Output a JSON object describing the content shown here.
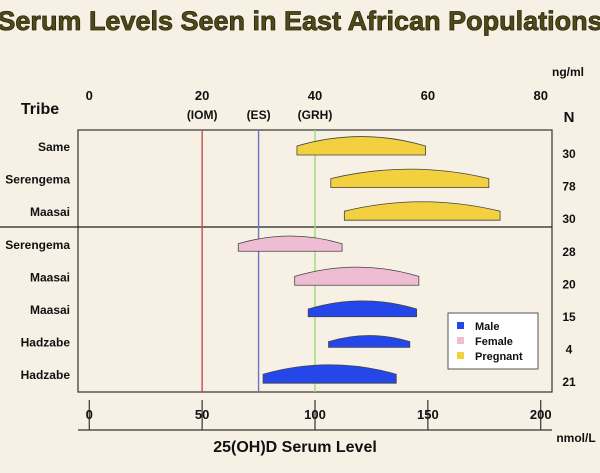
{
  "title": "Serum Levels Seen in East African Populations",
  "chart_data": {
    "type": "range-bar",
    "title": "Serum Levels Seen in East African Populations",
    "xlabel": "25(OH)D Serum Level",
    "x_unit_bottom": "nmol/L",
    "x_unit_top": "ng/ml",
    "xlim_nmol": [
      -5,
      205
    ],
    "xticks_nmol": [
      0,
      50,
      100,
      150,
      200
    ],
    "xticks_ngml": [
      0,
      20,
      40,
      60,
      80
    ],
    "row_axis_label": "Tribe",
    "n_label": "N",
    "reference_lines": [
      {
        "name": "(IOM)",
        "ngml": 20,
        "nmol": 50,
        "color": "#c0504d"
      },
      {
        "name": "(ES)",
        "ngml": 30,
        "nmol": 75,
        "color": "#6b74c9"
      },
      {
        "name": "(GRH)",
        "ngml": 40,
        "nmol": 100,
        "color": "#9edb72"
      }
    ],
    "group_colors": {
      "Male": "#2546e8",
      "Female": "#efbdd3",
      "Pregnant": "#f2d040"
    },
    "rows": [
      {
        "tribe": "Same",
        "group": "Pregnant",
        "min": 92,
        "max": 149,
        "n": "30"
      },
      {
        "tribe": "Serengema",
        "group": "Pregnant",
        "min": 107,
        "max": 177,
        "n": "78"
      },
      {
        "tribe": "Maasai",
        "group": "Pregnant",
        "min": 113,
        "max": 182,
        "n": "30"
      },
      {
        "tribe": "Serengema",
        "group": "Female",
        "min": 66,
        "max": 112,
        "n": "28"
      },
      {
        "tribe": "Maasai",
        "group": "Female",
        "min": 91,
        "max": 146,
        "n": "20"
      },
      {
        "tribe": "Maasai",
        "group": "Male",
        "min": 97,
        "max": 145,
        "n": "15"
      },
      {
        "tribe": "Hadzabe",
        "group": "Male",
        "min": 106,
        "max": 142,
        "n": "4"
      },
      {
        "tribe": "Hadzabe",
        "group": "Male",
        "min": 77,
        "max": 136,
        "n": "21"
      }
    ],
    "legend": [
      "Male",
      "Female",
      "Pregnant"
    ],
    "legend_position": "bottom-right",
    "grid": false
  }
}
